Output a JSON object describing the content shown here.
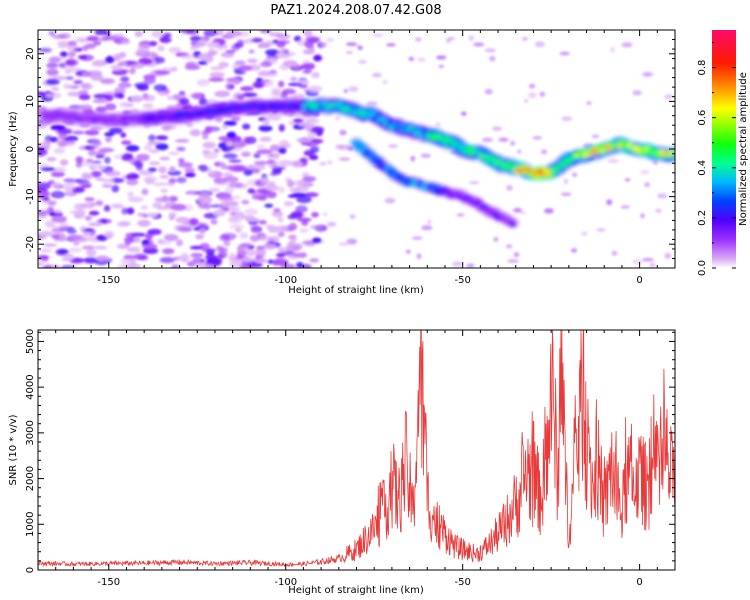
{
  "figure": {
    "title": "PAZ1.2024.208.07.42.G08"
  },
  "chart_data": [
    {
      "type": "heatmap",
      "xlabel": "Height of straight line (km)",
      "ylabel": "Frequency (Hz)",
      "xlim": [
        -170,
        10
      ],
      "ylim": [
        -25,
        25
      ],
      "x_ticks": [
        -150,
        -100,
        -50,
        0
      ],
      "y_ticks": [
        -20,
        -10,
        0,
        10,
        20
      ],
      "colorbar": {
        "label": "Normalized spectral amplitude",
        "range": [
          0,
          0.95
        ],
        "ticks": [
          0.0,
          0.2,
          0.4,
          0.6,
          0.8
        ],
        "colormap": "white-purple-blue-cyan-green-yellow-red-pink"
      },
      "ridge": {
        "height_km": [
          -165,
          -150,
          -130,
          -110,
          -95,
          -85,
          -80,
          -75,
          -70,
          -65,
          -60,
          -55,
          -50,
          -45,
          -40,
          -35,
          -30,
          -25,
          -20,
          -15,
          -10,
          -5,
          0,
          5,
          10
        ],
        "frequency_hz": [
          7,
          6,
          7,
          9,
          9,
          9,
          8,
          7,
          5,
          4,
          3,
          2,
          0,
          -1,
          -3,
          -4,
          -5,
          -5,
          -2,
          -1,
          0,
          1,
          0,
          -1,
          -1
        ]
      },
      "secondary_branch": {
        "height_km": [
          -80,
          -75,
          -70,
          -65,
          -60,
          -55,
          -50,
          -45,
          -40,
          -35
        ],
        "frequency_hz": [
          1,
          -2,
          -5,
          -7,
          -8,
          -9,
          -10,
          -12,
          -14,
          -16
        ]
      },
      "colors": {
        "low": "#ffffff",
        "peak": "#ff0000"
      }
    },
    {
      "type": "line",
      "xlabel": "Height of straight line (km)",
      "ylabel": "SNR (10 * v/v)",
      "xlim": [
        -170,
        10
      ],
      "ylim": [
        0,
        5250
      ],
      "x_ticks": [
        -150,
        -100,
        -50,
        0
      ],
      "y_ticks": [
        0,
        1000,
        2000,
        3000,
        4000,
        5000
      ],
      "series": [
        {
          "color": "#e83a3a",
          "x": [
            -170,
            -160,
            -150,
            -140,
            -130,
            -120,
            -110,
            -100,
            -95,
            -90,
            -85,
            -80,
            -75,
            -72,
            -70,
            -68,
            -66,
            -64,
            -62,
            -61,
            -60,
            -58,
            -56,
            -54,
            -52,
            -50,
            -48,
            -46,
            -44,
            -42,
            -40,
            -38,
            -36,
            -34,
            -32,
            -30,
            -28,
            -26,
            -25,
            -24,
            -23,
            -22,
            -21,
            -20,
            -19,
            -18,
            -17,
            -16,
            -15,
            -14,
            -13,
            -12,
            -11,
            -10,
            -9,
            -8,
            -7,
            -6,
            -5,
            -4,
            -3,
            -2,
            -1,
            0,
            2,
            4,
            6,
            7,
            8,
            9,
            10
          ],
          "y": [
            150,
            130,
            140,
            150,
            170,
            140,
            160,
            120,
            130,
            180,
            250,
            450,
            900,
            1300,
            1900,
            1500,
            2300,
            1200,
            4500,
            3200,
            1600,
            1100,
            900,
            700,
            500,
            450,
            400,
            350,
            450,
            600,
            800,
            1000,
            1300,
            1600,
            2200,
            2000,
            1600,
            2300,
            4200,
            3000,
            2000,
            5200,
            2000,
            900,
            1500,
            2500,
            3200,
            4100,
            2700,
            2000,
            1800,
            2500,
            1600,
            1400,
            1700,
            2400,
            1800,
            1500,
            1200,
            1900,
            2100,
            1700,
            2200,
            2000,
            1800,
            2200,
            2000,
            2600,
            2300,
            2000,
            1900
          ]
        }
      ]
    }
  ]
}
